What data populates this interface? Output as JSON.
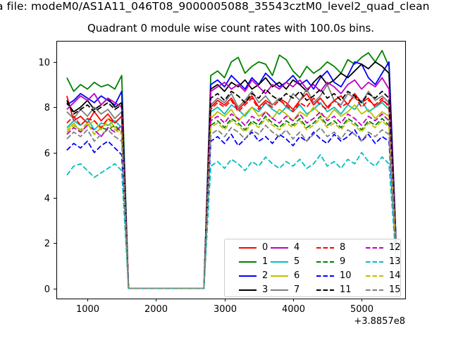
{
  "figure": {
    "background": "#ffffff",
    "frame_color": "#000000",
    "legend_border_color": "#cccccc"
  },
  "chart_data": {
    "type": "line",
    "suptitle": "a file: modeM0/AS1A11_046T08_9000005088_35543cztM0_level2_quad_clean",
    "title": "Quadrant 0 module wise count rates with 100.0s bins.",
    "xlabel": "",
    "ylabel": "",
    "x_offset_text": "+3.8857e8",
    "xlim": [
      547,
      5637
    ],
    "ylim": [
      -0.45,
      10.93
    ],
    "xticks": [
      1000,
      2000,
      3000,
      4000,
      5000
    ],
    "yticks": [
      0,
      2,
      4,
      6,
      8,
      10
    ],
    "grid": false,
    "legend_position": "lower right",
    "legend_columns": 4,
    "x": [
      700,
      800,
      900,
      1000,
      1100,
      1200,
      1300,
      1400,
      1500,
      1600,
      1700,
      1800,
      1900,
      2000,
      2100,
      2200,
      2300,
      2400,
      2500,
      2600,
      2700,
      2800,
      2900,
      3000,
      3100,
      3200,
      3300,
      3400,
      3500,
      3600,
      3700,
      3800,
      3900,
      4000,
      4100,
      4200,
      4300,
      4400,
      4500,
      4600,
      4700,
      4800,
      4900,
      5000,
      5100,
      5200,
      5300,
      5400,
      5500
    ],
    "series": [
      {
        "name": "0",
        "color": "#ff0000",
        "linestyle": "solid",
        "values": [
          8.5,
          7.4,
          7.6,
          7.3,
          7.8,
          7.4,
          7.7,
          7.3,
          7.6,
          0,
          0,
          0,
          0,
          0,
          0,
          0,
          0,
          0,
          0,
          0,
          0,
          8.0,
          8.3,
          8.1,
          8.4,
          7.9,
          8.2,
          8.5,
          8.0,
          8.3,
          8.1,
          8.4,
          8.2,
          7.9,
          8.3,
          8.6,
          8.1,
          8.4,
          8.0,
          8.3,
          8.5,
          8.1,
          8.6,
          8.2,
          8.4,
          8.0,
          8.3,
          8.1,
          2.1
        ]
      },
      {
        "name": "1",
        "color": "#008000",
        "linestyle": "solid",
        "values": [
          9.3,
          8.7,
          9.0,
          8.8,
          9.1,
          8.9,
          9.0,
          8.8,
          9.4,
          0,
          0,
          0,
          0,
          0,
          0,
          0,
          0,
          0,
          0,
          0,
          0,
          9.4,
          9.6,
          9.3,
          10.0,
          10.2,
          9.5,
          9.8,
          10.0,
          9.9,
          9.4,
          10.3,
          10.1,
          9.6,
          9.3,
          9.8,
          9.5,
          9.7,
          10.0,
          9.8,
          9.5,
          10.1,
          9.9,
          10.2,
          10.4,
          10.0,
          10.5,
          9.8,
          2.4
        ]
      },
      {
        "name": "2",
        "color": "#0000ff",
        "linestyle": "solid",
        "values": [
          8.1,
          8.3,
          8.6,
          8.4,
          8.2,
          8.5,
          8.3,
          8.1,
          8.7,
          0,
          0,
          0,
          0,
          0,
          0,
          0,
          0,
          0,
          0,
          0,
          0,
          9.0,
          9.2,
          8.9,
          9.4,
          9.1,
          8.8,
          9.3,
          9.0,
          9.5,
          9.2,
          8.9,
          9.1,
          9.4,
          9.0,
          9.2,
          8.8,
          9.3,
          9.6,
          9.1,
          8.9,
          9.4,
          10.0,
          9.9,
          9.3,
          9.0,
          9.5,
          10.0,
          2.3
        ]
      },
      {
        "name": "3",
        "color": "#000000",
        "linestyle": "solid",
        "values": [
          8.2,
          7.8,
          8.0,
          8.3,
          7.9,
          8.1,
          8.4,
          8.0,
          8.2,
          0,
          0,
          0,
          0,
          0,
          0,
          0,
          0,
          0,
          0,
          0,
          0,
          8.8,
          9.0,
          8.7,
          9.1,
          8.9,
          9.2,
          8.8,
          9.0,
          9.3,
          8.9,
          9.1,
          8.8,
          9.2,
          9.0,
          8.7,
          9.1,
          9.4,
          9.0,
          9.2,
          9.5,
          9.3,
          9.6,
          9.9,
          9.7,
          10.0,
          9.8,
          9.5,
          2.3
        ]
      },
      {
        "name": "4",
        "color": "#bf00bf",
        "linestyle": "solid",
        "values": [
          7.9,
          8.2,
          8.5,
          8.3,
          8.6,
          8.1,
          8.4,
          8.2,
          8.0,
          0,
          0,
          0,
          0,
          0,
          0,
          0,
          0,
          0,
          0,
          0,
          0,
          8.7,
          8.9,
          9.1,
          8.8,
          9.0,
          8.7,
          9.2,
          8.9,
          8.6,
          9.0,
          8.8,
          9.1,
          8.9,
          9.2,
          8.8,
          9.0,
          8.7,
          9.1,
          8.9,
          8.6,
          9.0,
          9.2,
          8.8,
          9.1,
          8.9,
          9.3,
          8.8,
          2.2
        ]
      },
      {
        "name": "5",
        "color": "#00bfbf",
        "linestyle": "solid",
        "values": [
          7.1,
          7.4,
          7.2,
          7.5,
          7.0,
          7.3,
          7.2,
          7.4,
          7.1,
          0,
          0,
          0,
          0,
          0,
          0,
          0,
          0,
          0,
          0,
          0,
          0,
          7.8,
          8.0,
          7.7,
          8.1,
          7.9,
          7.6,
          8.0,
          7.8,
          8.2,
          7.9,
          7.7,
          8.0,
          7.8,
          8.1,
          7.7,
          7.9,
          8.2,
          7.8,
          8.0,
          7.7,
          8.1,
          7.9,
          8.3,
          7.8,
          8.0,
          8.2,
          7.9,
          2.0
        ]
      },
      {
        "name": "6",
        "color": "#bfbf00",
        "linestyle": "solid",
        "values": [
          7.0,
          7.3,
          6.9,
          7.2,
          7.4,
          7.0,
          7.5,
          7.1,
          6.9,
          0,
          0,
          0,
          0,
          0,
          0,
          0,
          0,
          0,
          0,
          0,
          0,
          7.5,
          7.8,
          7.6,
          7.9,
          7.4,
          7.7,
          8.0,
          7.6,
          7.8,
          7.5,
          7.9,
          7.7,
          7.4,
          7.8,
          7.6,
          8.0,
          7.7,
          7.5,
          7.9,
          7.6,
          7.8,
          8.1,
          7.7,
          7.9,
          7.5,
          7.8,
          7.6,
          1.9
        ]
      },
      {
        "name": "7",
        "color": "#7f7f7f",
        "linestyle": "solid",
        "values": [
          7.8,
          7.5,
          7.9,
          7.6,
          8.0,
          7.7,
          7.9,
          7.5,
          7.8,
          0,
          0,
          0,
          0,
          0,
          0,
          0,
          0,
          0,
          0,
          0,
          0,
          8.1,
          8.4,
          8.2,
          8.6,
          8.0,
          8.3,
          8.7,
          8.2,
          8.5,
          8.1,
          8.4,
          8.0,
          8.6,
          8.3,
          8.8,
          8.2,
          8.5,
          9.0,
          8.3,
          8.1,
          8.6,
          8.4,
          8.2,
          8.7,
          8.3,
          8.5,
          8.2,
          2.1
        ]
      },
      {
        "name": "8",
        "color": "#ff0000",
        "linestyle": "dashed",
        "values": [
          7.3,
          7.6,
          7.2,
          7.5,
          7.4,
          7.1,
          7.5,
          7.3,
          7.6,
          0,
          0,
          0,
          0,
          0,
          0,
          0,
          0,
          0,
          0,
          0,
          0,
          7.9,
          8.2,
          8.0,
          8.3,
          7.8,
          8.1,
          8.4,
          7.9,
          8.2,
          8.0,
          8.3,
          8.1,
          7.8,
          8.2,
          8.0,
          8.4,
          8.1,
          7.9,
          8.3,
          8.0,
          8.2,
          8.5,
          8.0,
          8.3,
          8.1,
          8.4,
          8.0,
          2.0
        ]
      },
      {
        "name": "9",
        "color": "#008000",
        "linestyle": "dashed",
        "values": [
          6.9,
          7.2,
          7.0,
          7.3,
          6.8,
          7.1,
          7.0,
          7.2,
          6.9,
          0,
          0,
          0,
          0,
          0,
          0,
          0,
          0,
          0,
          0,
          0,
          0,
          7.2,
          7.4,
          7.1,
          7.5,
          7.3,
          7.0,
          7.4,
          7.2,
          7.6,
          7.3,
          7.1,
          7.4,
          7.2,
          7.5,
          7.1,
          7.3,
          7.6,
          7.2,
          7.4,
          7.1,
          7.5,
          7.3,
          7.0,
          7.4,
          7.2,
          7.5,
          7.2,
          1.8
        ]
      },
      {
        "name": "10",
        "color": "#0000ff",
        "linestyle": "dashed",
        "values": [
          6.1,
          6.4,
          6.2,
          6.5,
          6.0,
          6.3,
          6.5,
          6.2,
          5.9,
          0,
          0,
          0,
          0,
          0,
          0,
          0,
          0,
          0,
          0,
          0,
          0,
          6.5,
          6.7,
          6.4,
          6.8,
          6.3,
          6.6,
          6.9,
          6.5,
          6.7,
          6.4,
          6.8,
          6.6,
          6.3,
          6.7,
          6.5,
          6.9,
          6.6,
          6.4,
          6.8,
          6.5,
          6.7,
          7.0,
          6.5,
          6.8,
          6.4,
          6.7,
          6.5,
          1.7
        ]
      },
      {
        "name": "11",
        "color": "#000000",
        "linestyle": "dashed",
        "values": [
          8.3,
          7.7,
          7.9,
          8.1,
          7.8,
          8.0,
          8.2,
          7.9,
          8.1,
          0,
          0,
          0,
          0,
          0,
          0,
          0,
          0,
          0,
          0,
          0,
          0,
          8.4,
          8.6,
          8.3,
          8.7,
          8.5,
          8.2,
          8.6,
          8.4,
          8.8,
          8.5,
          8.3,
          8.6,
          8.4,
          8.7,
          8.3,
          8.5,
          8.8,
          8.4,
          8.6,
          8.3,
          8.7,
          8.5,
          8.2,
          8.6,
          8.4,
          8.7,
          8.4,
          2.1
        ]
      },
      {
        "name": "12",
        "color": "#bf00bf",
        "linestyle": "dashed",
        "values": [
          6.8,
          7.1,
          6.9,
          7.2,
          7.0,
          6.7,
          7.1,
          6.9,
          7.2,
          0,
          0,
          0,
          0,
          0,
          0,
          0,
          0,
          0,
          0,
          0,
          0,
          7.4,
          7.6,
          7.3,
          7.7,
          7.5,
          7.2,
          7.6,
          7.4,
          7.8,
          7.5,
          7.3,
          7.6,
          7.4,
          7.7,
          7.3,
          7.5,
          7.8,
          7.4,
          7.6,
          7.3,
          7.7,
          7.5,
          7.2,
          7.6,
          7.4,
          7.7,
          7.4,
          1.9
        ]
      },
      {
        "name": "13",
        "color": "#00bfbf",
        "linestyle": "dashed",
        "values": [
          5.0,
          5.4,
          5.5,
          5.2,
          4.9,
          5.1,
          5.3,
          5.5,
          5.2,
          0,
          0,
          0,
          0,
          0,
          0,
          0,
          0,
          0,
          0,
          0,
          0,
          5.4,
          5.6,
          5.3,
          5.7,
          5.5,
          5.2,
          5.6,
          5.4,
          5.8,
          5.5,
          5.3,
          5.6,
          5.4,
          5.7,
          5.3,
          5.5,
          5.9,
          5.4,
          5.6,
          5.3,
          5.7,
          5.5,
          6.0,
          5.6,
          5.4,
          5.8,
          5.5,
          1.4
        ]
      },
      {
        "name": "14",
        "color": "#bfbf00",
        "linestyle": "dashed",
        "values": [
          6.9,
          7.2,
          7.0,
          7.3,
          6.8,
          7.1,
          7.3,
          7.0,
          6.8,
          0,
          0,
          0,
          0,
          0,
          0,
          0,
          0,
          0,
          0,
          0,
          0,
          7.1,
          7.3,
          7.0,
          7.4,
          7.2,
          6.9,
          7.3,
          7.1,
          7.5,
          7.2,
          7.0,
          7.3,
          7.1,
          7.4,
          7.0,
          7.2,
          7.5,
          7.1,
          7.3,
          7.0,
          7.4,
          7.2,
          6.9,
          7.3,
          7.1,
          7.4,
          7.1,
          1.8
        ]
      },
      {
        "name": "15",
        "color": "#7f7f7f",
        "linestyle": "dashed",
        "values": [
          6.6,
          6.9,
          6.7,
          7.0,
          6.5,
          6.8,
          7.0,
          6.7,
          6.5,
          0,
          0,
          0,
          0,
          0,
          0,
          0,
          0,
          0,
          0,
          0,
          0,
          6.8,
          7.0,
          6.7,
          7.1,
          6.9,
          6.6,
          7.0,
          6.8,
          7.2,
          6.9,
          6.7,
          7.0,
          6.6,
          6.9,
          6.5,
          6.8,
          7.1,
          6.7,
          6.9,
          6.6,
          7.0,
          6.8,
          6.5,
          6.9,
          6.7,
          7.0,
          6.8,
          1.7
        ]
      }
    ]
  }
}
